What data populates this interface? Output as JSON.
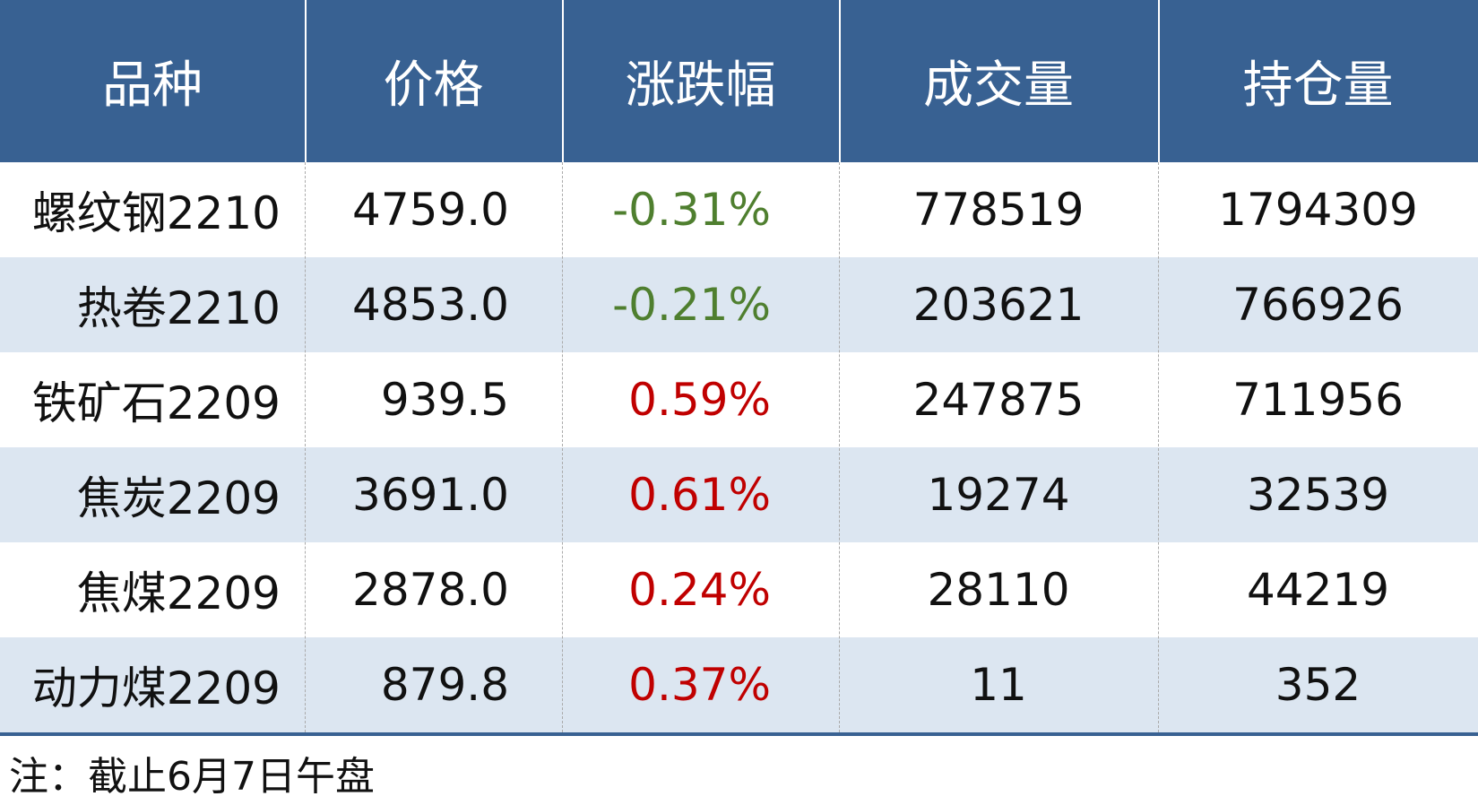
{
  "table": {
    "header": [
      "品种",
      "价格",
      "涨跌幅",
      "成交量",
      "持仓量"
    ],
    "rows": [
      [
        "螺纹钢2210",
        "4759.0",
        "-0.31%",
        "778519",
        "1794309"
      ],
      [
        "热卷2210",
        "4853.0",
        "-0.21%",
        "203621",
        "766926"
      ],
      [
        "铁矿石2209",
        "939.5",
        "0.59%",
        "247875",
        "711956"
      ],
      [
        "焦炭2209",
        "3691.0",
        "0.61%",
        "19274",
        "32539"
      ],
      [
        "焦煤2209",
        "2878.0",
        "0.24%",
        "28110",
        "44219"
      ],
      [
        "动力煤2209",
        "879.8",
        "0.37%",
        "11",
        "352"
      ]
    ],
    "header_color": "#386192",
    "stripe_color": "#dce6f1",
    "up_color": "#c00000",
    "down_color": "#4f7f2f"
  },
  "note": "注：截止6月7日午盘"
}
